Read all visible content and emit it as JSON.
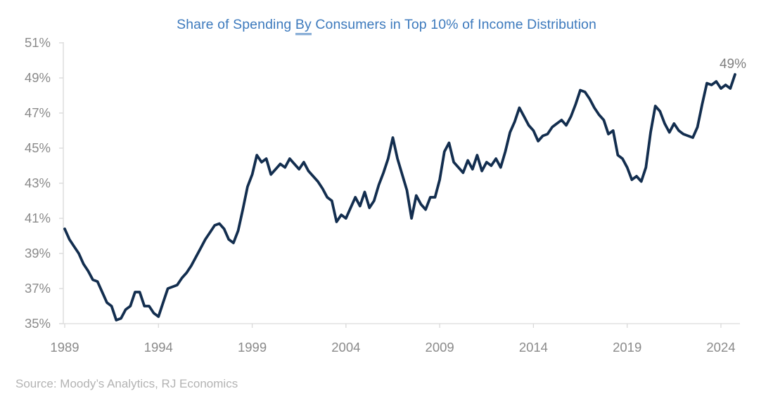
{
  "title": {
    "prefix": "Share of Spending ",
    "underlined_word": "By",
    "suffix": " Consumers in Top 10% of Income Distribution"
  },
  "source_note": "Source: Moody’s Analytics, RJ Economics",
  "end_label": "49%",
  "colors": {
    "title": "#3D7ABD",
    "line": "#132E4F",
    "axis": "#D9D9D9",
    "tick_text": "#8A8A8A",
    "annotation_text": "#7F7F7F",
    "source_text": "#B3B3B3"
  },
  "chart_data": {
    "type": "line",
    "title": "Share of Spending By Consumers in Top 10% of Income Distribution",
    "frequency": "quarterly",
    "start": "1989Q1",
    "end": "2024Q4",
    "x_axis": {
      "tick_labels": [
        "1989",
        "1994",
        "1999",
        "2004",
        "2009",
        "2014",
        "2019",
        "2024"
      ],
      "first_year": 1989
    },
    "y_axis": {
      "tick_labels": [
        "35%",
        "37%",
        "39%",
        "41%",
        "43%",
        "45%",
        "47%",
        "49%",
        "51%"
      ],
      "min": 35,
      "max": 51,
      "unit": "%"
    },
    "grid": false,
    "legend": false,
    "line_color": "#132E4F",
    "end_annotation": "49%",
    "series": [
      {
        "name": "Share of spending by consumers in top 10% of income distribution (%)",
        "values": [
          40.4,
          39.8,
          39.4,
          39.0,
          38.4,
          38.0,
          37.5,
          37.4,
          36.8,
          36.2,
          36.0,
          35.2,
          35.3,
          35.8,
          36.0,
          36.8,
          36.8,
          36.0,
          36.0,
          35.6,
          35.4,
          36.2,
          37.0,
          37.1,
          37.2,
          37.6,
          37.9,
          38.3,
          38.8,
          39.3,
          39.8,
          40.2,
          40.6,
          40.7,
          40.4,
          39.8,
          39.6,
          40.3,
          41.5,
          42.8,
          43.5,
          44.6,
          44.2,
          44.4,
          43.5,
          43.8,
          44.1,
          43.9,
          44.4,
          44.1,
          43.8,
          44.2,
          43.7,
          43.4,
          43.1,
          42.7,
          42.2,
          42.0,
          40.8,
          41.2,
          41.0,
          41.6,
          42.2,
          41.7,
          42.5,
          41.6,
          42.0,
          42.9,
          43.6,
          44.4,
          45.6,
          44.4,
          43.5,
          42.6,
          41.0,
          42.3,
          41.8,
          41.5,
          42.2,
          42.2,
          43.2,
          44.8,
          45.3,
          44.2,
          43.9,
          43.6,
          44.3,
          43.8,
          44.6,
          43.7,
          44.2,
          44.0,
          44.4,
          43.9,
          44.8,
          45.9,
          46.5,
          47.3,
          46.8,
          46.3,
          46.0,
          45.4,
          45.7,
          45.8,
          46.2,
          46.4,
          46.6,
          46.3,
          46.8,
          47.5,
          48.3,
          48.2,
          47.8,
          47.3,
          46.9,
          46.6,
          45.8,
          46.0,
          44.6,
          44.4,
          43.9,
          43.2,
          43.4,
          43.1,
          43.9,
          45.9,
          47.4,
          47.1,
          46.4,
          45.9,
          46.4,
          46.0,
          45.8,
          45.7,
          45.6,
          46.2,
          47.5,
          48.7,
          48.6,
          48.8,
          48.4,
          48.6,
          48.4,
          49.2
        ]
      }
    ]
  }
}
